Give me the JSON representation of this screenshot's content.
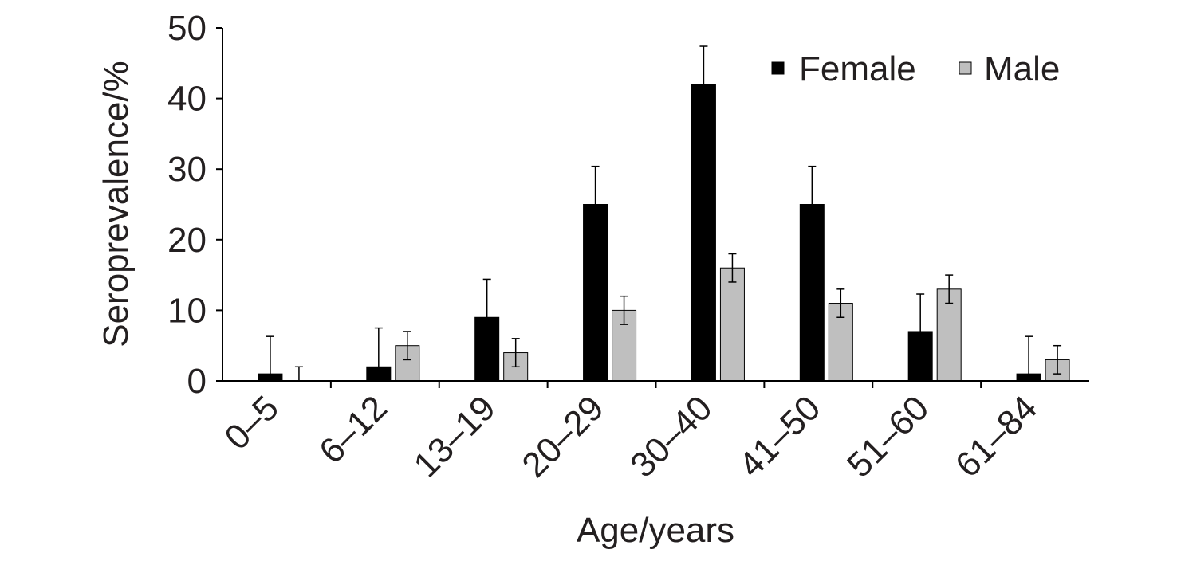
{
  "chart_data": {
    "type": "bar",
    "title": "",
    "xlabel": "Age/years",
    "ylabel": "Seroprevalence/%",
    "ylim": [
      0,
      50
    ],
    "yticks": [
      0,
      10,
      20,
      30,
      40,
      50
    ],
    "categories": [
      "0–5",
      "6–12",
      "13–19",
      "20–29",
      "30–40",
      "41–50",
      "51–60",
      "61–84"
    ],
    "series": [
      {
        "name": "Female",
        "color": "#000000",
        "values": [
          1,
          2,
          9,
          25,
          42,
          25,
          7,
          1
        ],
        "error_upper": [
          5.3,
          5.5,
          5.4,
          5.4,
          5.4,
          5.4,
          5.3,
          5.3
        ]
      },
      {
        "name": "Male",
        "color": "#bfbfbf",
        "values": [
          0,
          5,
          4,
          10,
          16,
          11,
          13,
          3
        ],
        "error": [
          2,
          2,
          2,
          2,
          2,
          2,
          2,
          2
        ]
      }
    ],
    "legend": {
      "placement": "top-right"
    },
    "grid": false
  }
}
